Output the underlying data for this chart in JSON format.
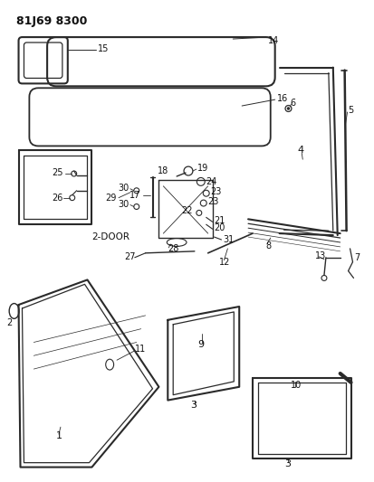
{
  "title": "81J69 8300",
  "bg_color": "#ffffff",
  "line_color": "#2a2a2a",
  "title_fontsize": 9,
  "label_fontsize": 7,
  "figsize": [
    4.13,
    5.33
  ],
  "dpi": 100
}
